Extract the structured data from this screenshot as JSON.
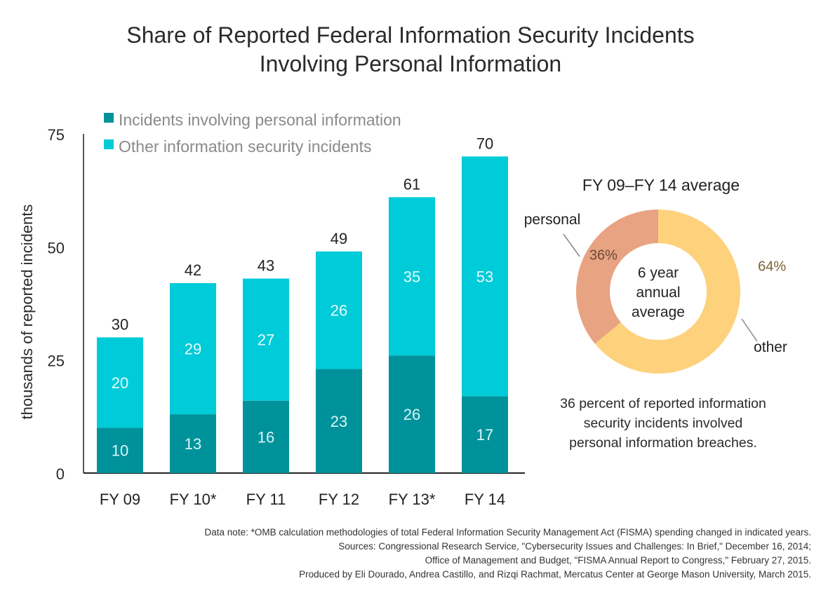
{
  "title_lines": [
    "Share of Reported Federal Information Security Incidents",
    "Involving Personal Information"
  ],
  "colors": {
    "personal": "#00929a",
    "other": "#00cbd8",
    "donut_personal": "#e8a382",
    "donut_other": "#fed27c",
    "axis": "#222222"
  },
  "chart_data": [
    {
      "type": "bar",
      "stacked": true,
      "categories": [
        "FY 09",
        "FY 10*",
        "FY 11",
        "FY 12",
        "FY 13*",
        "FY 14"
      ],
      "series": [
        {
          "name": "Incidents involving personal information",
          "values": [
            10,
            13,
            16,
            23,
            26,
            17
          ]
        },
        {
          "name": "Other information security incidents",
          "values": [
            20,
            29,
            27,
            26,
            35,
            53
          ]
        }
      ],
      "totals": [
        30,
        42,
        43,
        49,
        61,
        70
      ],
      "ylabel": "thousands of reported incidents",
      "ylim": [
        0,
        75
      ],
      "yticks": [
        0,
        25,
        50,
        75
      ],
      "grid": false,
      "legend": "top-left"
    },
    {
      "type": "pie",
      "donut": true,
      "title": "FY 09–FY 14 average",
      "center_label": [
        "6 year",
        "annual",
        "average"
      ],
      "slices": [
        {
          "label": "personal",
          "value": 36,
          "value_label": "36%"
        },
        {
          "label": "other",
          "value": 64,
          "value_label": "64%"
        }
      ]
    }
  ],
  "summary_lines": [
    "36 percent of reported information",
    "security incidents involved",
    "personal information breaches."
  ],
  "notes": [
    "Data note: *OMB calculation methodologies of total Federal Information Security Management Act (FISMA) spending changed in indicated years.",
    "Sources: Congressional Research Service, \"Cybersecurity Issues and Challenges: In Brief,\" December 16, 2014;",
    "Office of Management and Budget, \"FISMA Annual Report to Congress,\" February 27, 2015.",
    "Produced by Eli Dourado, Andrea Castillo, and Rizqi Rachmat, Mercatus Center at George Mason University, March 2015."
  ]
}
